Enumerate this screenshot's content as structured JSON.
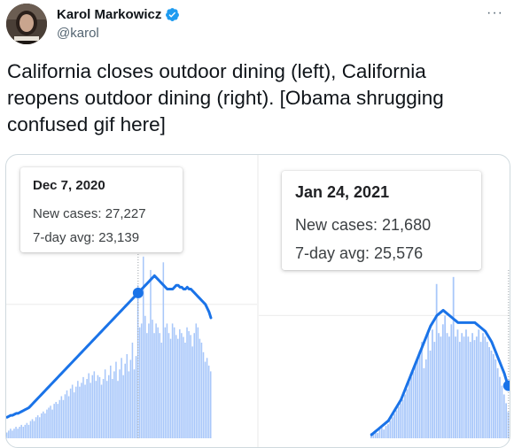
{
  "author": {
    "name": "Karol Markowicz",
    "handle": "@karol",
    "verified": true,
    "avatar_icon": "profile-photo"
  },
  "more_menu": "···",
  "tweet_text": "California closes outdoor dining (left), California reopens outdoor dining (right). [Obama shrugging confused gif here]",
  "colors": {
    "bar": "#a8c7fa",
    "line": "#1a73e8",
    "verified": "#1d9bf0",
    "gridline": "#ebebeb"
  },
  "charts": [
    {
      "tooltip": {
        "date": "Dec 7, 2020",
        "new_cases": "New cases: 27,227",
        "avg": "7-day avg: 23,139"
      }
    },
    {
      "tooltip": {
        "date": "Jan 24, 2021",
        "new_cases": "New cases: 21,680",
        "avg": "7-day avg: 25,576"
      }
    }
  ],
  "chart_data": [
    {
      "type": "bar",
      "series": [
        {
          "values": [
            3,
            4,
            5,
            4,
            5,
            6,
            5,
            6,
            7,
            6,
            7,
            8,
            7,
            9,
            10,
            9,
            11,
            12,
            11,
            13,
            14,
            13,
            15,
            16,
            17,
            15,
            18,
            19,
            18,
            20,
            22,
            20,
            23,
            25,
            22,
            26,
            28,
            24,
            27,
            30,
            27,
            29,
            32,
            28,
            31,
            34,
            29,
            33,
            35,
            30,
            33,
            32,
            28,
            31,
            36,
            30,
            33,
            38,
            31,
            35,
            40,
            30,
            36,
            42,
            33,
            39,
            44,
            35,
            41,
            50,
            36,
            43,
            80,
            58,
            60,
            95,
            64,
            55,
            60,
            88,
            62,
            55,
            60,
            58,
            55,
            50,
            92,
            58,
            60,
            55,
            52,
            60,
            58,
            54,
            52,
            57,
            55,
            53,
            50,
            58,
            56,
            54,
            48,
            55,
            60,
            58,
            52,
            50,
            45,
            40,
            42,
            38,
            35
          ]
        },
        {
          "values": [
            11,
            11.5,
            12,
            12,
            12.5,
            13,
            13,
            13.5,
            14,
            14.5,
            15,
            15.5,
            16,
            17,
            18,
            19,
            20,
            21,
            22,
            23,
            24,
            25,
            26,
            27,
            28,
            29,
            30,
            31,
            32,
            33,
            34,
            35,
            36,
            37,
            38,
            39,
            40,
            41,
            42,
            43,
            44,
            45,
            46,
            47,
            48,
            49,
            50,
            51,
            52,
            53,
            54,
            55,
            56,
            57,
            58,
            59,
            60,
            61,
            62,
            63,
            64,
            65,
            66,
            67,
            68,
            69,
            70,
            71,
            72,
            73,
            74,
            75,
            76,
            77,
            78,
            79,
            80,
            81,
            82,
            83,
            84,
            85,
            84,
            83,
            82,
            81,
            80,
            79,
            78,
            78,
            78,
            78,
            79,
            80,
            80,
            79,
            79,
            78,
            78,
            79,
            78,
            78,
            77,
            76,
            75,
            74,
            73,
            72,
            71,
            70,
            68,
            66,
            63
          ]
        }
      ]
    },
    {
      "type": "bar",
      "series": [
        {
          "values": [
            0,
            0,
            0,
            0,
            0,
            0,
            0,
            0,
            0,
            0,
            0,
            0,
            0,
            0,
            0,
            0,
            0,
            0,
            0,
            0,
            0,
            0,
            0,
            0,
            0,
            0,
            0,
            0,
            0,
            0,
            0,
            0,
            0,
            0,
            0,
            0,
            0,
            0,
            0,
            0,
            0,
            0,
            0,
            0,
            0,
            0,
            0,
            0,
            0,
            0,
            0,
            0,
            0,
            3,
            2,
            4,
            3,
            5,
            6,
            5,
            7,
            8,
            10,
            12,
            14,
            16,
            18,
            20,
            22,
            25,
            28,
            32,
            35,
            38,
            42,
            45,
            50,
            55,
            40,
            45,
            60,
            50,
            62,
            55,
            88,
            60,
            58,
            65,
            70,
            60,
            58,
            65,
            92,
            58,
            62,
            55,
            60,
            58,
            62,
            58,
            55,
            60,
            56,
            58,
            62,
            55,
            60,
            58,
            55,
            52,
            50,
            48,
            45,
            40,
            35,
            30,
            25,
            20,
            15
          ]
        },
        {
          "values": [
            0,
            0,
            0,
            0,
            0,
            0,
            0,
            0,
            0,
            0,
            0,
            0,
            0,
            0,
            0,
            0,
            0,
            0,
            0,
            0,
            0,
            0,
            0,
            0,
            0,
            0,
            0,
            0,
            0,
            0,
            0,
            0,
            0,
            0,
            0,
            0,
            0,
            0,
            0,
            0,
            0,
            0,
            0,
            0,
            0,
            0,
            0,
            0,
            0,
            0,
            0,
            0,
            0,
            2,
            3,
            4,
            5,
            6,
            7,
            8,
            9,
            10,
            12,
            14,
            16,
            18,
            20,
            22,
            25,
            28,
            31,
            34,
            37,
            40,
            43,
            46,
            49,
            52,
            55,
            58,
            61,
            64,
            66,
            68,
            70,
            71,
            72,
            73,
            72,
            71,
            70,
            69,
            68,
            67,
            66,
            66,
            66,
            66,
            66,
            66,
            66,
            66,
            66,
            65,
            64,
            63,
            62,
            61,
            59,
            57,
            55,
            52,
            49,
            46,
            43,
            40,
            37,
            33,
            30
          ]
        }
      ]
    }
  ]
}
